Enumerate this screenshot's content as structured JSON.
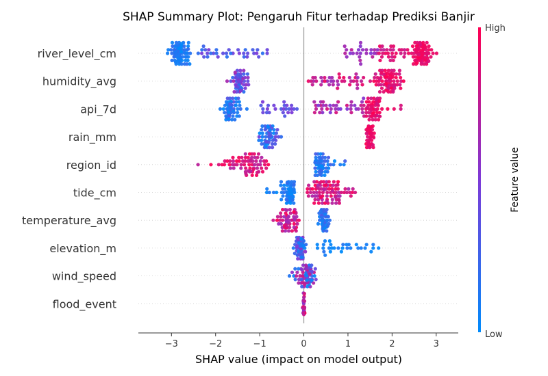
{
  "chart_data": {
    "type": "scatter",
    "subtype": "shap-summary-beeswarm",
    "title": "SHAP Summary Plot: Pengaruh Fitur terhadap Prediksi Banjir",
    "xlabel": "SHAP value (impact on model output)",
    "xlim": [
      -3.75,
      3.5
    ],
    "xticks": [
      -3,
      -2,
      -1,
      0,
      1,
      2,
      3
    ],
    "features": [
      "river_level_cm",
      "humidity_avg",
      "api_7d",
      "rain_mm",
      "region_id",
      "tide_cm",
      "temperature_avg",
      "elevation_m",
      "wind_speed",
      "flood_event"
    ],
    "colorbar": {
      "label": "Feature value",
      "high_label": "High",
      "low_label": "Low",
      "low_color": "#008bfb",
      "high_color": "#ff0052"
    },
    "series": [
      {
        "feature": "river_level_cm",
        "clusters": [
          {
            "from": -3.5,
            "to": -2.4,
            "n": 90,
            "center": -2.8,
            "spread": 0.12,
            "lo": 0.0,
            "hi": 0.2
          },
          {
            "from": -2.4,
            "to": -0.8,
            "n": 35,
            "lo": 0.15,
            "hi": 0.5
          },
          {
            "from": 0.9,
            "to": 1.7,
            "n": 25,
            "lo": 0.5,
            "hi": 0.75
          },
          {
            "from": 1.7,
            "to": 2.4,
            "n": 30,
            "lo": 0.75,
            "hi": 0.95
          },
          {
            "from": 2.4,
            "to": 3.1,
            "n": 90,
            "center": 2.65,
            "spread": 0.12,
            "lo": 0.85,
            "hi": 1.0
          }
        ]
      },
      {
        "feature": "humidity_avg",
        "clusters": [
          {
            "from": -2.0,
            "to": -0.9,
            "n": 60,
            "center": -1.45,
            "spread": 0.1,
            "lo": 0.15,
            "hi": 0.7
          },
          {
            "from": 0.1,
            "to": 1.4,
            "n": 40,
            "lo": 0.6,
            "hi": 0.95
          },
          {
            "from": 1.4,
            "to": 2.5,
            "n": 80,
            "center": 1.9,
            "spread": 0.15,
            "lo": 0.8,
            "hi": 1.0
          }
        ]
      },
      {
        "feature": "api_7d",
        "clusters": [
          {
            "from": -1.95,
            "to": -1.1,
            "n": 60,
            "center": -1.65,
            "spread": 0.12,
            "lo": 0.0,
            "hi": 0.35
          },
          {
            "from": -1.1,
            "to": -0.1,
            "n": 25,
            "lo": 0.3,
            "hi": 0.5
          },
          {
            "from": 0.2,
            "to": 1.4,
            "n": 40,
            "lo": 0.5,
            "hi": 0.85
          },
          {
            "from": 1.4,
            "to": 2.3,
            "n": 60,
            "center": 1.6,
            "spread": 0.12,
            "lo": 0.8,
            "hi": 1.0
          }
        ]
      },
      {
        "feature": "rain_mm",
        "clusters": [
          {
            "from": -1.3,
            "to": -0.45,
            "n": 55,
            "center": -0.8,
            "spread": 0.12,
            "lo": 0.0,
            "hi": 0.45
          },
          {
            "from": 1.1,
            "to": 1.65,
            "n": 45,
            "center": 1.5,
            "spread": 0.05,
            "lo": 0.85,
            "hi": 1.0
          }
        ]
      },
      {
        "feature": "region_id",
        "clusters": [
          {
            "from": -2.65,
            "to": -0.8,
            "n": 70,
            "center": -1.2,
            "spread": 0.35,
            "lo": 0.7,
            "hi": 1.0
          },
          {
            "from": 0.25,
            "to": 0.95,
            "n": 60,
            "center": 0.35,
            "spread": 0.12,
            "lo": 0.0,
            "hi": 0.3
          }
        ]
      },
      {
        "feature": "tide_cm",
        "clusters": [
          {
            "from": -0.85,
            "to": -0.2,
            "n": 70,
            "center": -0.3,
            "spread": 0.08,
            "lo": 0.0,
            "hi": 0.2
          },
          {
            "from": 0.05,
            "to": 1.3,
            "n": 90,
            "center": 0.4,
            "spread": 0.3,
            "lo": 0.65,
            "hi": 1.0
          }
        ]
      },
      {
        "feature": "temperature_avg",
        "clusters": [
          {
            "from": -0.75,
            "to": -0.1,
            "n": 60,
            "center": -0.35,
            "spread": 0.15,
            "lo": 0.6,
            "hi": 1.0
          },
          {
            "from": 0.25,
            "to": 0.7,
            "n": 50,
            "center": 0.45,
            "spread": 0.06,
            "lo": 0.0,
            "hi": 0.3
          }
        ]
      },
      {
        "feature": "elevation_m",
        "clusters": [
          {
            "from": -0.3,
            "to": 0.1,
            "n": 60,
            "center": -0.08,
            "spread": 0.06,
            "lo": 0.0,
            "hi": 0.6
          },
          {
            "from": 0.3,
            "to": 1.7,
            "n": 30,
            "lo": 0.0,
            "hi": 0.15
          }
        ]
      },
      {
        "feature": "wind_speed",
        "clusters": [
          {
            "from": -0.6,
            "to": 0.45,
            "n": 80,
            "center": 0.05,
            "spread": 0.12,
            "lo": 0.0,
            "hi": 0.8
          }
        ]
      },
      {
        "feature": "flood_event",
        "clusters": [
          {
            "from": -0.03,
            "to": 0.03,
            "n": 25,
            "center": 0.0,
            "spread": 0.01,
            "lo": 0.5,
            "hi": 1.0
          }
        ]
      }
    ]
  }
}
